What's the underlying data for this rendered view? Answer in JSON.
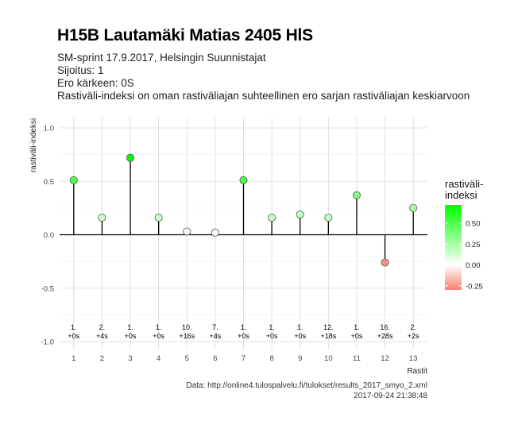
{
  "header": {
    "title": "H15B Lautamäki Matias 2405 HlS",
    "subtitle_lines": [
      "SM-sprint 17.9.2017, Helsingin Suunnistajat",
      "Sijoitus: 1",
      "Ero kärkeen: 0S",
      "Rastiväli-indeksi on oman rastiväliajan suhteellinen ero sarjan rastiväliajan keskiarvoon"
    ]
  },
  "footer": {
    "source": "Data: http://online4.tulospalvelu.fi/tulokset/results_2017_smyo_2.xml",
    "timestamp": "2017-09-24 21:38:48"
  },
  "legend": {
    "title_lines": [
      "rastiväli-",
      "indeksi"
    ],
    "ticks": [
      0.5,
      0.25,
      0.0,
      -0.25
    ],
    "tick_labels": [
      "0.50",
      "0.25",
      "0.00",
      "-0.25"
    ],
    "range": [
      -0.3,
      0.72
    ],
    "colors": {
      "high": "#00ff00",
      "mid": "#ffffff",
      "low": "#fa8072"
    }
  },
  "chart_data": {
    "type": "lollipop",
    "xlabel": "Rastit",
    "ylabel": "rastiväli-indeksi",
    "ylim": [
      -1.0,
      1.0
    ],
    "xlim": [
      0.5,
      13.5
    ],
    "yticks": [
      1.0,
      0.5,
      0.0,
      -0.5,
      -1.0
    ],
    "ytick_labels": [
      "1.0",
      "0.5",
      "0.0",
      "-0.5",
      "-1.0"
    ],
    "x": [
      1,
      2,
      3,
      4,
      5,
      6,
      7,
      8,
      9,
      10,
      11,
      12,
      13
    ],
    "values": [
      0.51,
      0.16,
      0.72,
      0.16,
      0.03,
      0.02,
      0.51,
      0.16,
      0.19,
      0.16,
      0.37,
      -0.26,
      0.25
    ],
    "ranks": [
      "1.",
      "2.",
      "1.",
      "1.",
      "10.",
      "7.",
      "1.",
      "1.",
      "1.",
      "12.",
      "1.",
      "16.",
      "2."
    ],
    "diffs": [
      "+0s",
      "+4s",
      "+0s",
      "+0s",
      "+16s",
      "+4s",
      "+0s",
      "+0s",
      "+0s",
      "+18s",
      "+0s",
      "+28s",
      "+2s"
    ],
    "grid": true
  }
}
